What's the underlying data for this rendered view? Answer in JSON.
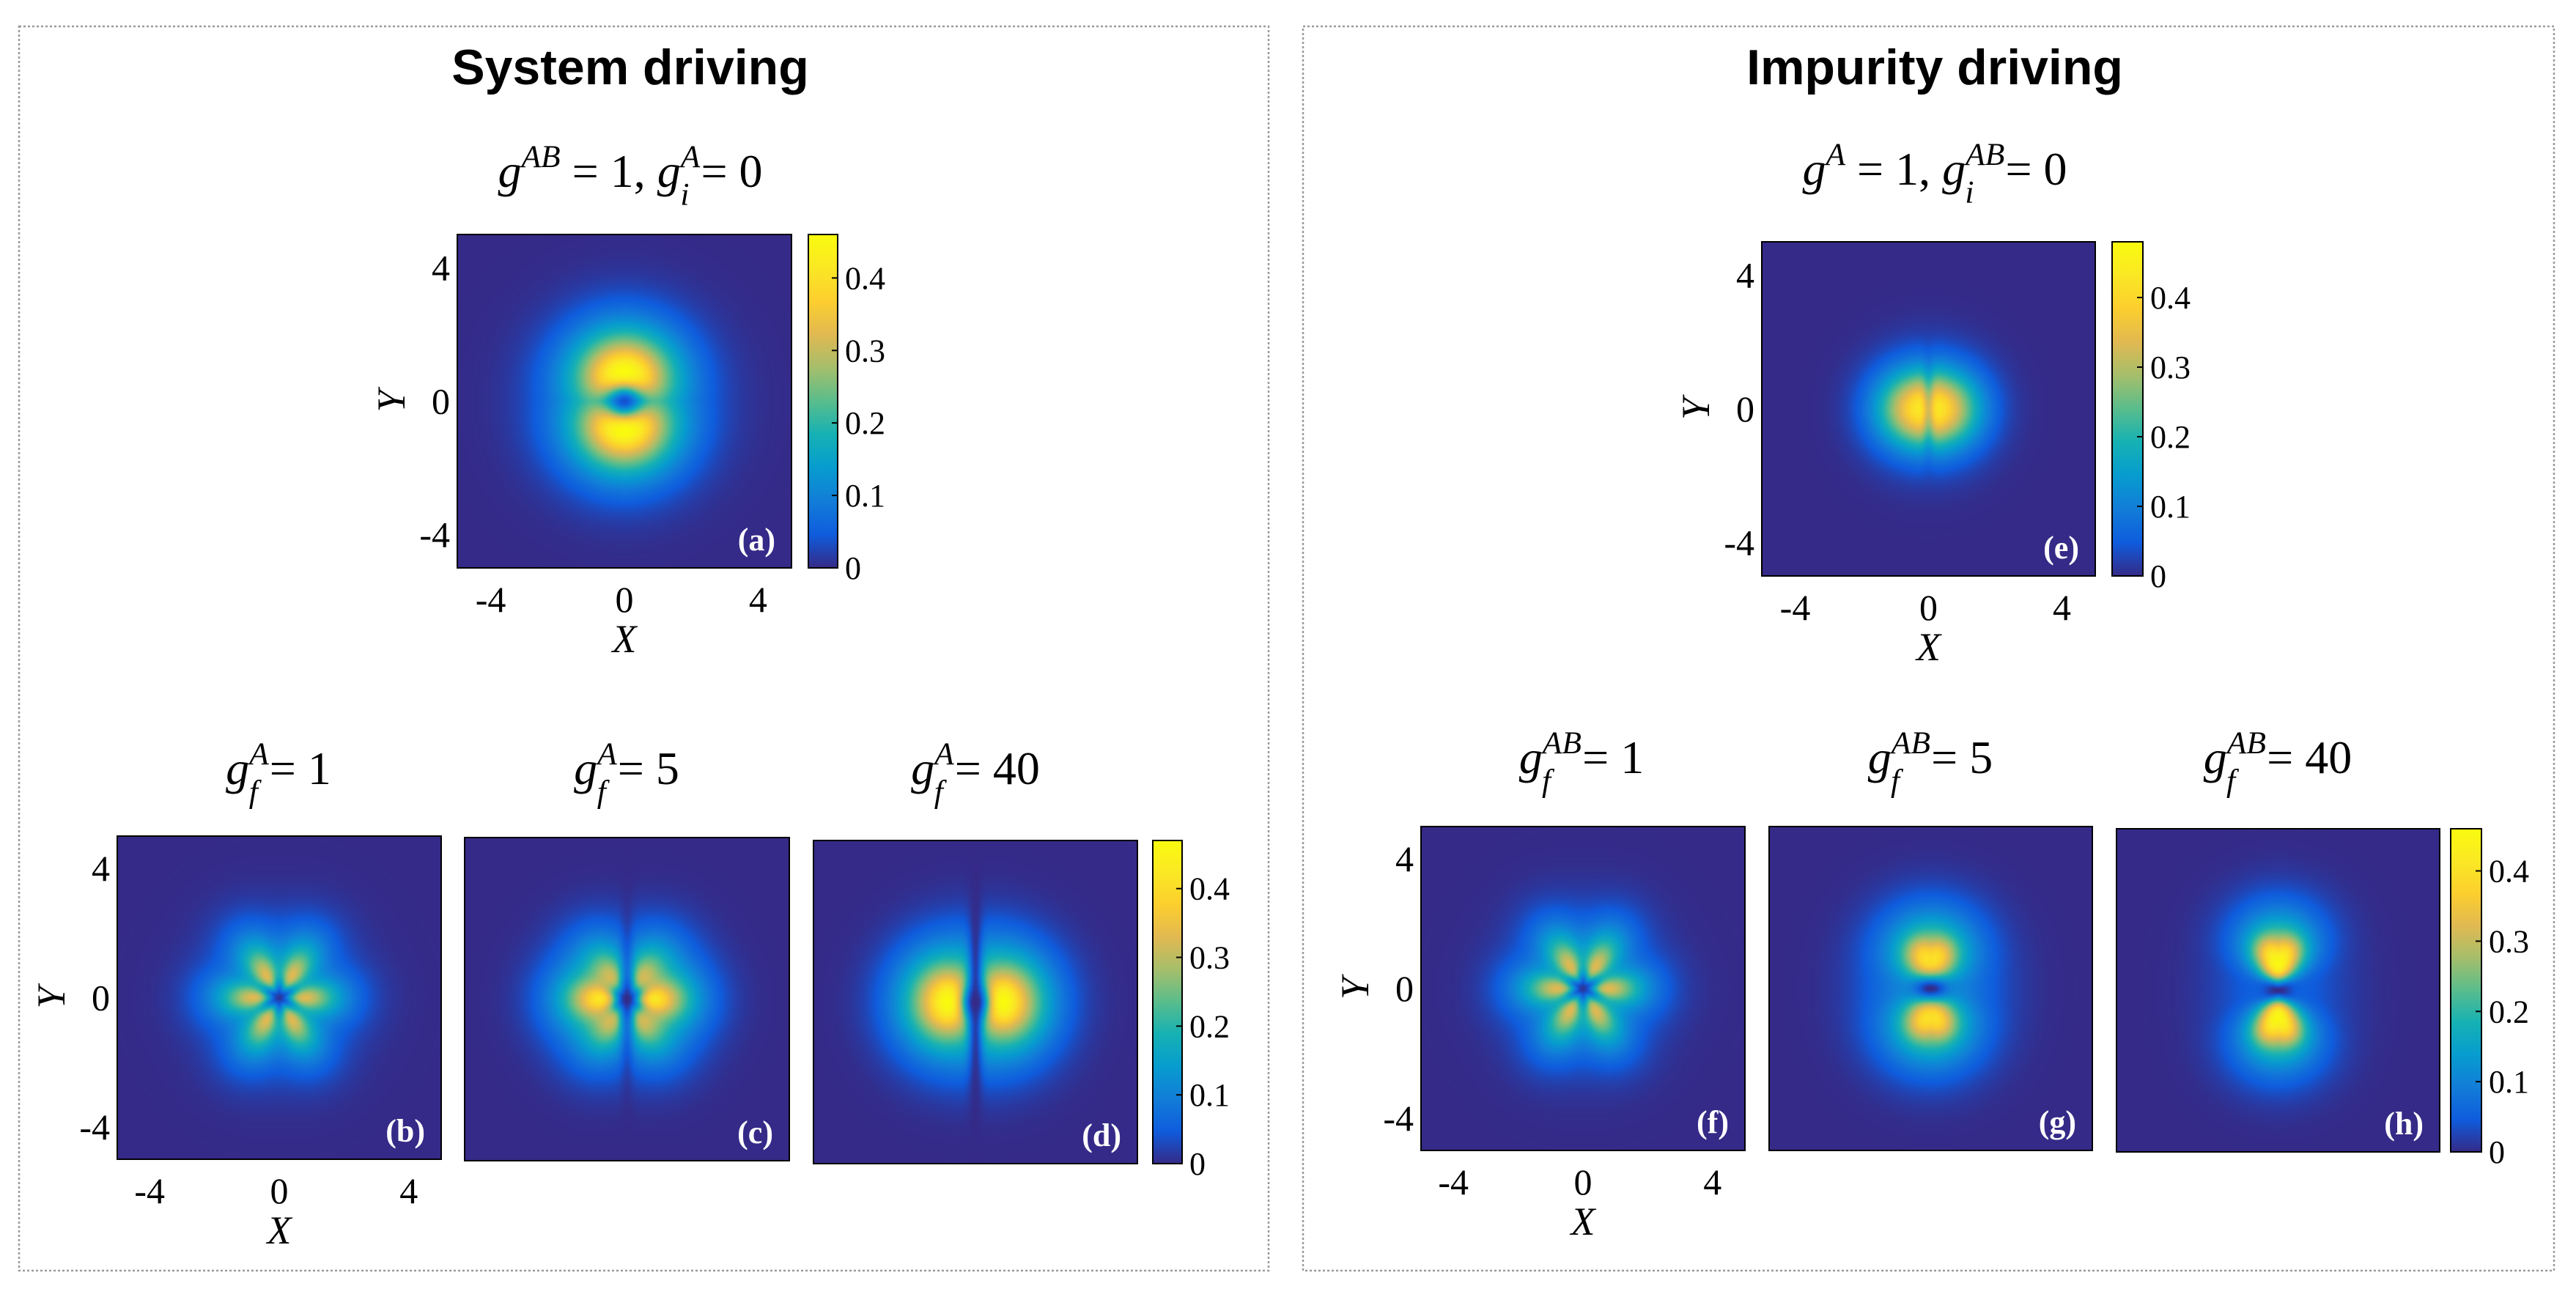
{
  "sections": [
    {
      "title": "System driving",
      "top_label": {
        "a": "g",
        "a_sup": "AB",
        "a_sub": "",
        "a_val": "= 1,",
        "b": "g",
        "b_sup": "A",
        "b_sub": "i",
        "b_val": "= 0"
      },
      "bottom_labels": [
        {
          "sym": "g",
          "sup": "A",
          "sub": "f",
          "val": "= 1"
        },
        {
          "sym": "g",
          "sup": "A",
          "sub": "f",
          "val": "= 5"
        },
        {
          "sym": "g",
          "sup": "A",
          "sub": "f",
          "val": "= 40"
        }
      ]
    },
    {
      "title": "Impurity driving",
      "top_label": {
        "a": "g",
        "a_sup": "A",
        "a_sub": "",
        "a_val": "= 1,",
        "b": "g",
        "b_sup": "AB",
        "b_sub": "i",
        "b_val": "= 0"
      },
      "bottom_labels": [
        {
          "sym": "g",
          "sup": "AB",
          "sub": "f",
          "val": "= 1"
        },
        {
          "sym": "g",
          "sup": "AB",
          "sub": "f",
          "val": "= 5"
        },
        {
          "sym": "g",
          "sup": "AB",
          "sub": "f",
          "val": "= 40"
        }
      ]
    }
  ],
  "chart_data": [
    {
      "type": "heatmap",
      "panel": "(a)",
      "xlabel": "X",
      "ylabel": "Y",
      "xlim": [
        -5,
        5
      ],
      "ylim": [
        -5,
        5
      ],
      "xticks": [
        "-4",
        "0",
        "4"
      ],
      "yticks": [
        "4",
        "0",
        "-4"
      ],
      "pattern": "vertical-lobes-with-weak-side-lobes",
      "peak": 0.46,
      "colorbar": {
        "min": 0,
        "max": 0.46,
        "ticks": [
          "0.4",
          "0.3",
          "0.2",
          "0.1",
          "0"
        ]
      }
    },
    {
      "type": "heatmap",
      "panel": "(b)",
      "xlabel": "X",
      "ylabel": "Y",
      "xlim": [
        -5,
        5
      ],
      "ylim": [
        -5,
        5
      ],
      "xticks": [
        "-4",
        "0",
        "4"
      ],
      "yticks": [
        "4",
        "0",
        "-4"
      ],
      "pattern": "six-lobes",
      "peak": 0.33
    },
    {
      "type": "heatmap",
      "panel": "(c)",
      "xlim": [
        -5,
        5
      ],
      "ylim": [
        -5,
        5
      ],
      "pattern": "horizontal-lobes-with-weak-ring-lobes",
      "peak": 0.42
    },
    {
      "type": "heatmap",
      "panel": "(d)",
      "xlim": [
        -5,
        5
      ],
      "ylim": [
        -5,
        5
      ],
      "pattern": "horizontal-lobes-with-node-line",
      "peak": 0.47,
      "colorbar": {
        "min": 0,
        "max": 0.47,
        "ticks": [
          "0.4",
          "0.3",
          "0.2",
          "0.1",
          "0"
        ]
      }
    },
    {
      "type": "heatmap",
      "panel": "(e)",
      "xlabel": "X",
      "ylabel": "Y",
      "xlim": [
        -5,
        5
      ],
      "ylim": [
        -5,
        5
      ],
      "xticks": [
        "-4",
        "0",
        "4"
      ],
      "yticks": [
        "4",
        "0",
        "-4"
      ],
      "pattern": "two-central-lobes",
      "peak": 0.43,
      "colorbar": {
        "min": 0,
        "max": 0.48,
        "ticks": [
          "0.4",
          "0.3",
          "0.2",
          "0.1",
          "0"
        ]
      }
    },
    {
      "type": "heatmap",
      "panel": "(f)",
      "xlabel": "X",
      "ylabel": "Y",
      "xlim": [
        -5,
        5
      ],
      "ylim": [
        -5,
        5
      ],
      "xticks": [
        "-4",
        "0",
        "4"
      ],
      "yticks": [
        "4",
        "0",
        "-4"
      ],
      "pattern": "six-lobes",
      "peak": 0.33
    },
    {
      "type": "heatmap",
      "panel": "(g)",
      "xlim": [
        -5,
        5
      ],
      "ylim": [
        -5,
        5
      ],
      "pattern": "bowtie-vertical",
      "peak": 0.41
    },
    {
      "type": "heatmap",
      "panel": "(h)",
      "xlim": [
        -5,
        5
      ],
      "ylim": [
        -5,
        5
      ],
      "pattern": "bowtie-vertical-sharp",
      "peak": 0.45,
      "colorbar": {
        "min": 0,
        "max": 0.46,
        "ticks": [
          "0.4",
          "0.3",
          "0.2",
          "0.1",
          "0"
        ]
      }
    }
  ]
}
